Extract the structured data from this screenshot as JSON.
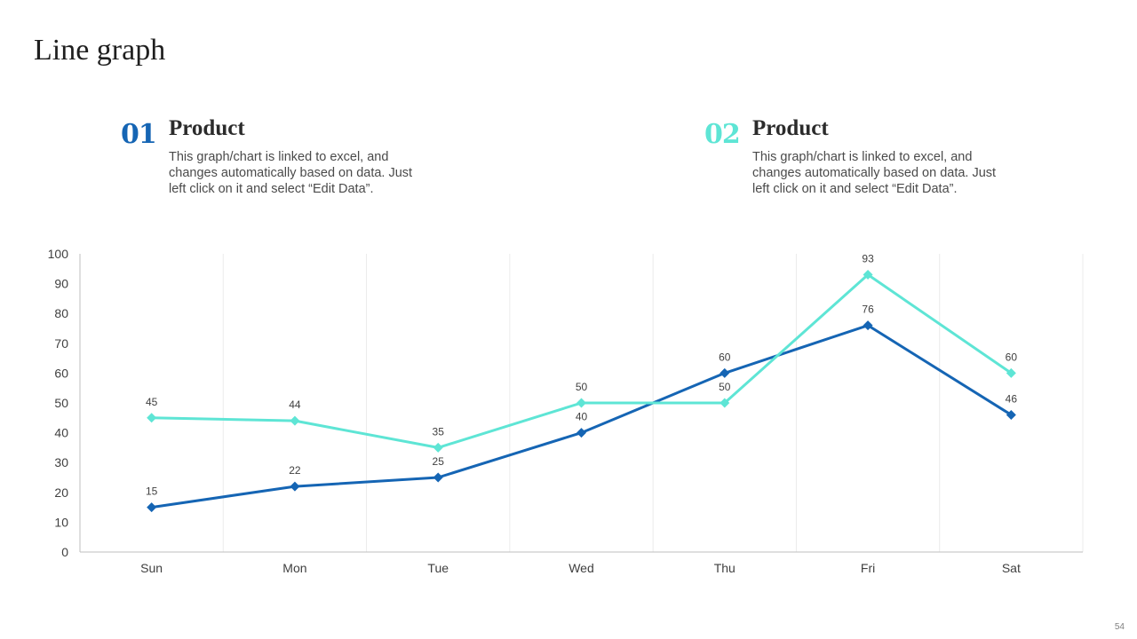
{
  "slide": {
    "title": "Line graph",
    "page_number": "54"
  },
  "products": [
    {
      "number": "01",
      "title": "Product",
      "description": "This graph/chart is linked to excel, and changes automatically based on data. Just left click on it and select “Edit Data”.",
      "color": "#1565b4"
    },
    {
      "number": "02",
      "title": "Product",
      "description": "This graph/chart is linked to excel, and changes automatically based on data. Just left click on it and select “Edit Data”.",
      "color": "#5ee5d5"
    }
  ],
  "chart_data": {
    "type": "line",
    "categories": [
      "Sun",
      "Mon",
      "Tue",
      "Wed",
      "Thu",
      "Fri",
      "Sat"
    ],
    "series": [
      {
        "name": "Product 01",
        "values": [
          15,
          22,
          25,
          40,
          60,
          76,
          46
        ],
        "color": "#1565b4"
      },
      {
        "name": "Product 02",
        "values": [
          45,
          44,
          35,
          50,
          50,
          93,
          60
        ],
        "color": "#5ee5d5"
      }
    ],
    "ylim": [
      0,
      100
    ],
    "yticks": [
      0,
      10,
      20,
      30,
      40,
      50,
      60,
      70,
      80,
      90,
      100
    ],
    "title": "",
    "xlabel": "",
    "ylabel": "",
    "grid": "vertical",
    "marker": "diamond"
  }
}
